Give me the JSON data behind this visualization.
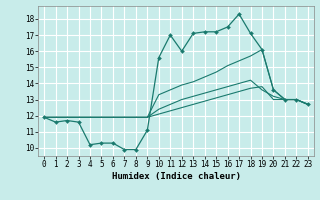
{
  "title": "",
  "xlabel": "Humidex (Indice chaleur)",
  "background_color": "#c8ecea",
  "grid_color": "#ffffff",
  "line_color": "#1a7a6e",
  "xlim": [
    -0.5,
    23.5
  ],
  "ylim": [
    9.5,
    18.8
  ],
  "xticks": [
    0,
    1,
    2,
    3,
    4,
    5,
    6,
    7,
    8,
    9,
    10,
    11,
    12,
    13,
    14,
    15,
    16,
    17,
    18,
    19,
    20,
    21,
    22,
    23
  ],
  "yticks": [
    10,
    11,
    12,
    13,
    14,
    15,
    16,
    17,
    18
  ],
  "series": [
    [
      11.9,
      11.6,
      11.7,
      11.6,
      10.2,
      10.3,
      10.3,
      9.9,
      9.9,
      11.1,
      15.6,
      17.0,
      16.0,
      17.1,
      17.2,
      17.2,
      17.5,
      18.3,
      17.1,
      16.1,
      13.6,
      13.0,
      13.0,
      12.7
    ],
    [
      11.9,
      11.9,
      11.9,
      11.9,
      11.9,
      11.9,
      11.9,
      11.9,
      11.9,
      11.9,
      12.1,
      12.3,
      12.5,
      12.7,
      12.9,
      13.1,
      13.3,
      13.5,
      13.7,
      13.8,
      13.0,
      13.0,
      13.0,
      12.7
    ],
    [
      11.9,
      11.9,
      11.9,
      11.9,
      11.9,
      11.9,
      11.9,
      11.9,
      11.9,
      11.9,
      12.4,
      12.7,
      13.0,
      13.2,
      13.4,
      13.6,
      13.8,
      14.0,
      14.2,
      13.6,
      13.2,
      13.0,
      13.0,
      12.7
    ],
    [
      11.9,
      11.9,
      11.9,
      11.9,
      11.9,
      11.9,
      11.9,
      11.9,
      11.9,
      11.9,
      13.3,
      13.6,
      13.9,
      14.1,
      14.4,
      14.7,
      15.1,
      15.4,
      15.7,
      16.1,
      13.6,
      13.0,
      13.0,
      12.7
    ]
  ],
  "markers": [
    true,
    false,
    false,
    false
  ],
  "tick_fontsize": 5.5,
  "xlabel_fontsize": 6.5
}
